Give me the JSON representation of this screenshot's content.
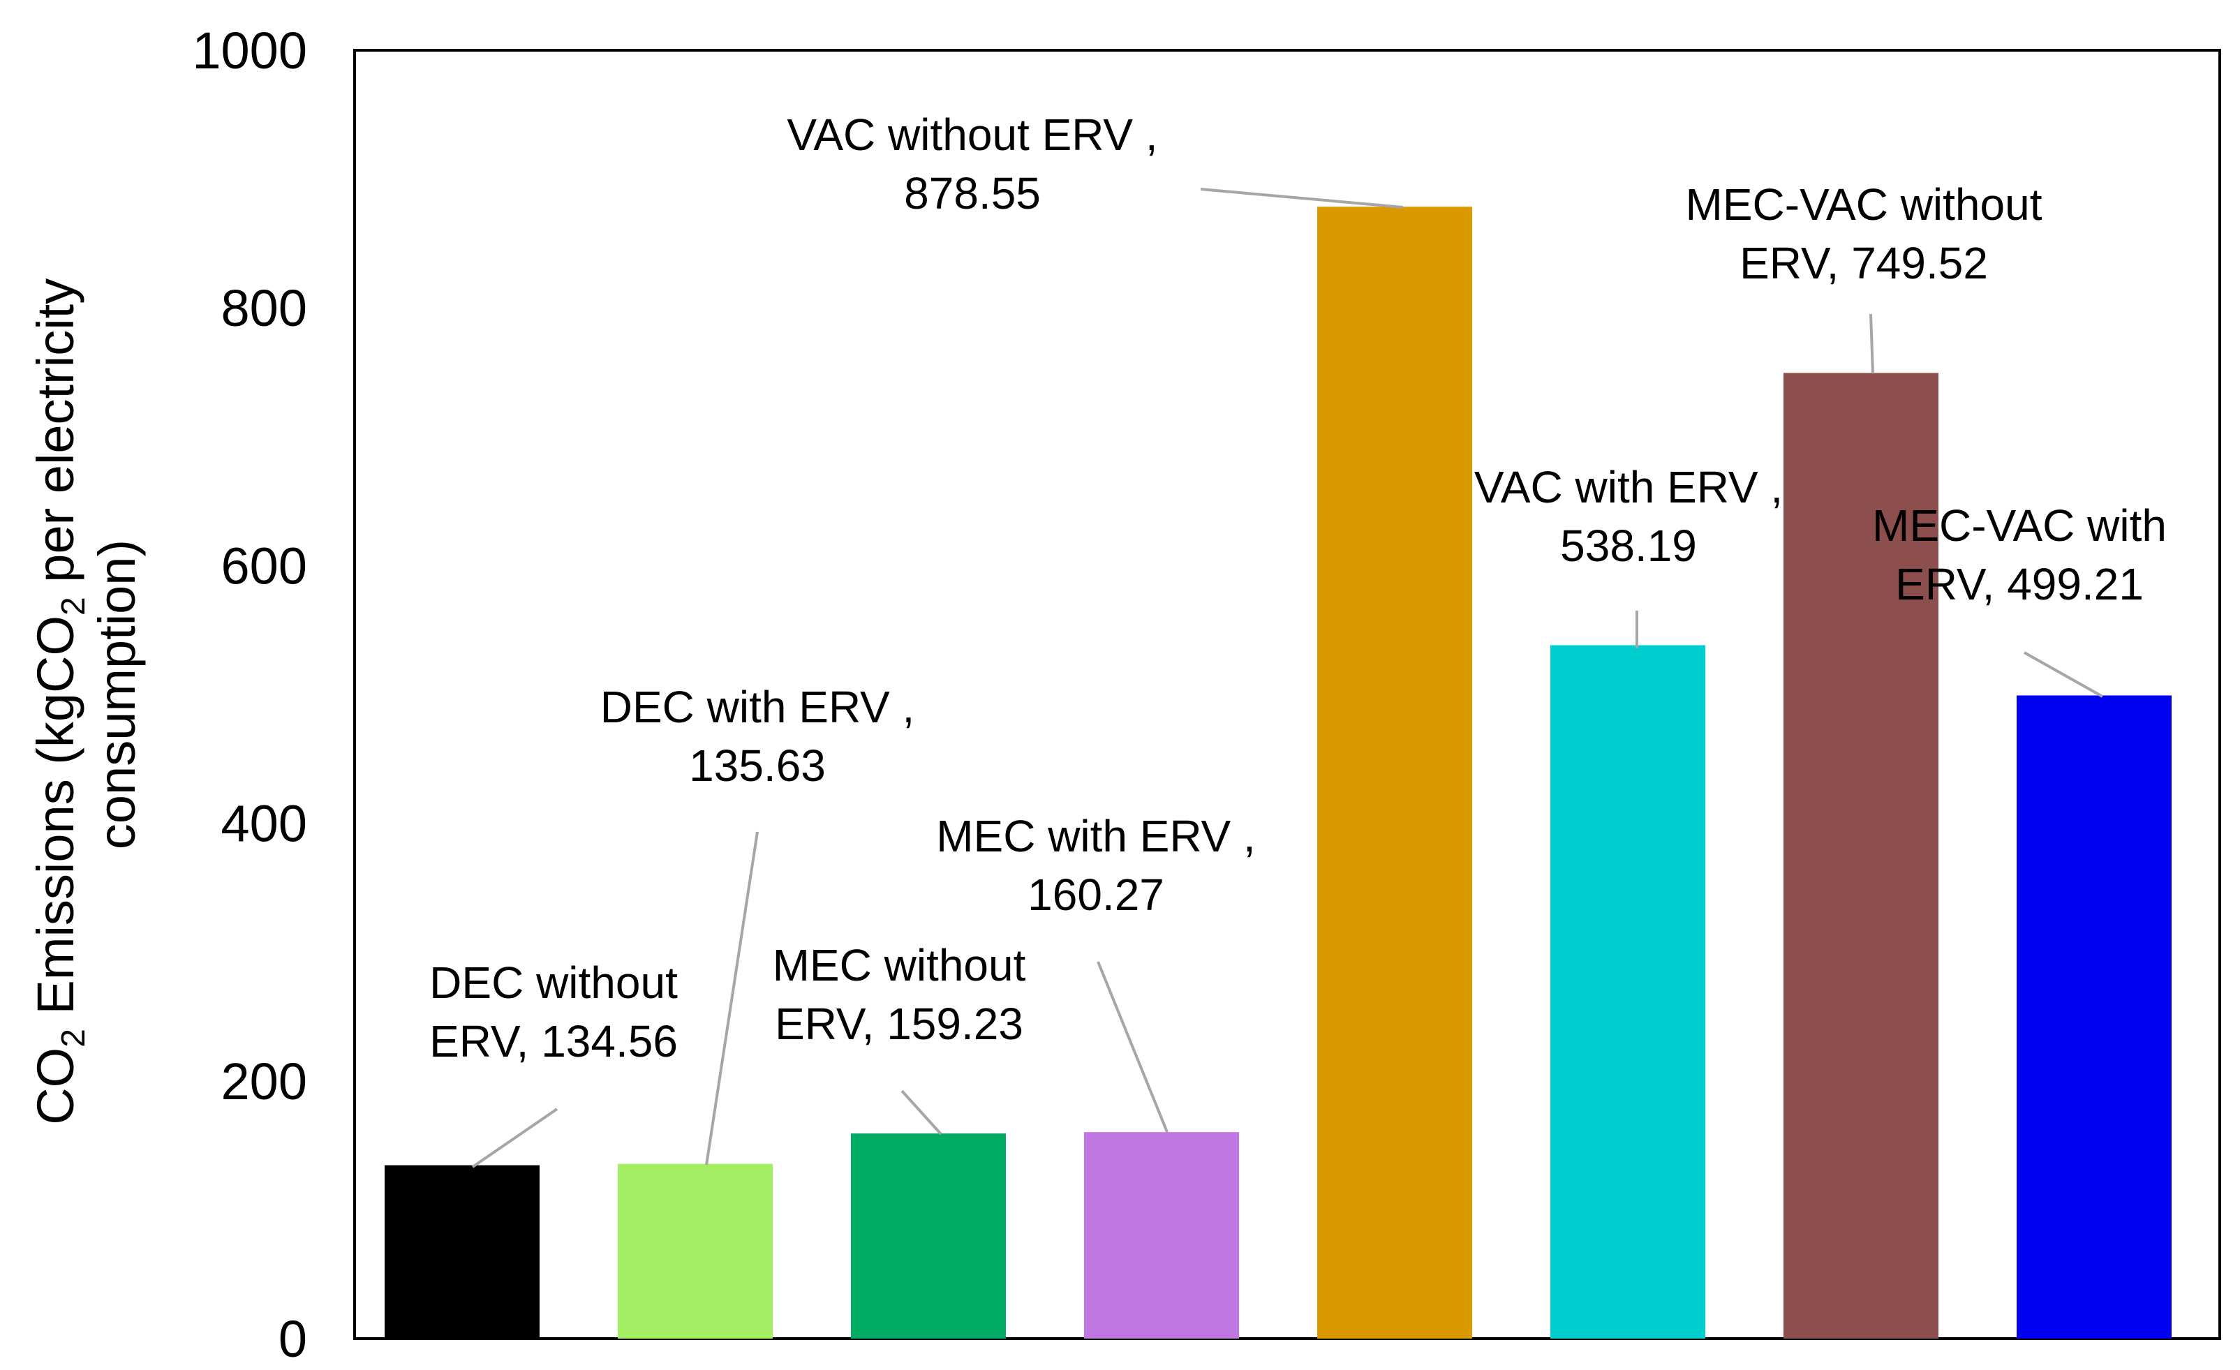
{
  "chart_data": {
    "type": "bar",
    "title": "",
    "xlabel": "",
    "ylabel": {
      "line1": "CO₂ Emissions (kgCO₂ per electricity",
      "line1_parts": [
        "CO",
        "2",
        " Emissions (kgCO",
        "2",
        " per electricity"
      ],
      "line2": "consumption)"
    },
    "ylim": [
      0,
      1000
    ],
    "yticks": [
      "0",
      "200",
      "400",
      "600",
      "800",
      "1000"
    ],
    "grid": false,
    "categories": [
      "DEC without ERV",
      "DEC with ERV",
      "MEC without ERV",
      "MEC with ERV",
      "VAC without ERV",
      "VAC with ERV",
      "MEC-VAC without ERV",
      "MEC-VAC with ERV"
    ],
    "values": [
      134.56,
      135.63,
      159.23,
      160.27,
      878.55,
      538.19,
      749.52,
      499.21
    ],
    "colors": [
      "#000000",
      "#a3ee63",
      "#00ab64",
      "#c077e2",
      "#db9900",
      "#00cdcd",
      "#8d4e4e",
      "#0000f0"
    ],
    "data_labels": [
      [
        "DEC without",
        "ERV, 134.56"
      ],
      [
        "DEC with ERV ,",
        "135.63"
      ],
      [
        "MEC without",
        "ERV, 159.23"
      ],
      [
        "MEC with ERV ,",
        "160.27"
      ],
      [
        "VAC without ERV ,",
        "878.55"
      ],
      [
        "VAC with ERV ,",
        "538.19"
      ],
      [
        "MEC-VAC without",
        "ERV, 749.52"
      ],
      [
        "MEC-VAC with",
        "ERV, 499.21"
      ]
    ]
  }
}
